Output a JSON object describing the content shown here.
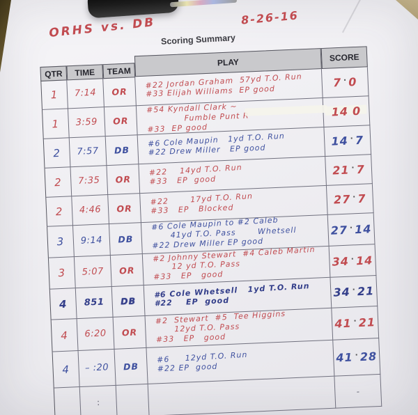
{
  "photo": {
    "matchup": "ORHS vs. DB",
    "date": "8-26-16",
    "sheet_title": "Scoring Summary"
  },
  "table": {
    "headers": {
      "qtr": "QTR",
      "time": "TIME",
      "team": "TEAM",
      "play": "PLAY",
      "score": "SCORE"
    },
    "score_separator": "·",
    "rows": [
      {
        "qtr": "1",
        "time": "7:14",
        "team": "OR",
        "ink": "red",
        "play_lines": [
          "#22 Jordan Graham  57yd T.O. Run",
          "#33 Elijah Williams  EP good"
        ],
        "score_a": "7",
        "score_b": "0"
      },
      {
        "qtr": "1",
        "time": "3:59",
        "team": "OR",
        "ink": "red",
        "play_lines": [
          "#54 Kyndall Clark ~",
          "            Fumble Punt R",
          "#33  EP good"
        ],
        "score_a": "14",
        "score_b": "0"
      },
      {
        "qtr": "2",
        "time": "7:57",
        "team": "DB",
        "ink": "blue",
        "play_lines": [
          "#6 Cole Maupin   1yd T.O. Run",
          "#22 Drew Miller   EP good"
        ],
        "score_a": "14",
        "score_b": "7"
      },
      {
        "qtr": "2",
        "time": "7:35",
        "team": "OR",
        "ink": "red",
        "play_lines": [
          "#22    14yd T.O. Run",
          "#33   EP  good"
        ],
        "score_a": "21",
        "score_b": "7"
      },
      {
        "qtr": "2",
        "time": "4:46",
        "team": "OR",
        "ink": "red",
        "play_lines": [
          "#22       17yd T.O. Run",
          "#33   EP   Blocked"
        ],
        "score_a": "27",
        "score_b": "7"
      },
      {
        "qtr": "3",
        "time": "9:14",
        "team": "DB",
        "ink": "blue",
        "play_lines": [
          "#6 Cole Maupin to #2 Caleb",
          "      41yd T.O. Pass       Whetsell",
          "#22 Drew Miller EP good"
        ],
        "score_a": "27",
        "score_b": "14"
      },
      {
        "qtr": "3",
        "time": "5:07",
        "team": "OR",
        "ink": "red",
        "play_lines": [
          "#2 Johnny Stewart  #4 Caleb Martin",
          "      12 yd T.O. Pass",
          "#33   EP   good"
        ],
        "score_a": "34",
        "score_b": "14"
      },
      {
        "qtr": "4",
        "time": "851",
        "team": "DB",
        "ink": "dark",
        "play_lines": [
          "#6 Cole Whetsell   1yd T.O. Run",
          "#22    EP  good"
        ],
        "score_a": "34",
        "score_b": "21"
      },
      {
        "qtr": "4",
        "time": "6:20",
        "team": "OR",
        "ink": "red",
        "play_lines": [
          "#2  Stewart  #5  Tee Higgins",
          "      12yd T.O. Pass",
          "#33   EP   good"
        ],
        "score_a": "41",
        "score_b": "21"
      },
      {
        "qtr": "4",
        "time": "– :20",
        "team": "DB",
        "ink": "blue",
        "play_lines": [
          "#6     12yd T.O. Run",
          "#22 EP  good"
        ],
        "score_a": "41",
        "score_b": "28"
      }
    ],
    "footer_row": {
      "time": ":",
      "score": "-"
    }
  },
  "colors": {
    "red_ink": "#c14b50",
    "blue_ink": "#3e509f",
    "dark_blue_ink": "#333e8a",
    "paper": "#efeef2",
    "header_bg": "#c9c9cc",
    "grid_line": "#70707e",
    "desk_dark": "#584a24",
    "desk_tan": "#c8b68c",
    "clip_black": "#141414"
  }
}
